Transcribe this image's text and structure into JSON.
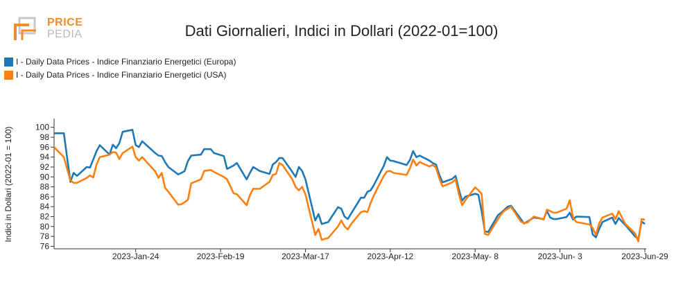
{
  "logo": {
    "top": "PRICE",
    "bottom": "PEDIA"
  },
  "colors": {
    "europa": "#1f77b4",
    "usa": "#ff7f0e",
    "logo_orange": "#f28c28",
    "logo_grey": "#b9b9b9"
  },
  "chart_data": {
    "type": "line",
    "title": "Dati Giornalieri, Indici in Dollari (2022-01=100)",
    "ylabel": "Indici in Dollari (2022-01 = 100)",
    "xlabel": "",
    "ylim": [
      75.5,
      101.5
    ],
    "yticks": [
      76,
      78,
      80,
      82,
      84,
      86,
      88,
      90,
      92,
      94,
      96,
      98,
      100
    ],
    "xlim": [
      "2022-12-30",
      "2023-06-29"
    ],
    "xticks": [
      {
        "date": "2023-01-24",
        "label": "2023-Jan-24"
      },
      {
        "date": "2023-02-19",
        "label": "2023-Feb-19"
      },
      {
        "date": "2023-03-17",
        "label": "2023-Mar-17"
      },
      {
        "date": "2023-04-12",
        "label": "2023-Apr-12"
      },
      {
        "date": "2023-05-08",
        "label": "2023-May- 8"
      },
      {
        "date": "2023-06-03",
        "label": "2023-Jun- 3"
      },
      {
        "date": "2023-06-29",
        "label": "2023-Jun-29"
      }
    ],
    "legend_position": "top-left",
    "grid": false,
    "series": [
      {
        "name": "I - Daily Data Prices - Indice Finanziario Energetici (Europa)",
        "color": "#1f77b4",
        "points": [
          [
            "2022-12-30",
            98.8
          ],
          [
            "2023-01-02",
            98.8
          ],
          [
            "2023-01-04",
            89.0
          ],
          [
            "2023-01-05",
            90.8
          ],
          [
            "2023-01-06",
            90.2
          ],
          [
            "2023-01-09",
            92.0
          ],
          [
            "2023-01-10",
            91.9
          ],
          [
            "2023-01-11",
            93.5
          ],
          [
            "2023-01-12",
            95.2
          ],
          [
            "2023-01-13",
            96.4
          ],
          [
            "2023-01-16",
            94.5
          ],
          [
            "2023-01-17",
            96.5
          ],
          [
            "2023-01-18",
            95.8
          ],
          [
            "2023-01-19",
            96.8
          ],
          [
            "2023-01-20",
            99.1
          ],
          [
            "2023-01-23",
            99.5
          ],
          [
            "2023-01-24",
            96.4
          ],
          [
            "2023-01-25",
            96.0
          ],
          [
            "2023-01-26",
            97.2
          ],
          [
            "2023-01-30",
            94.8
          ],
          [
            "2023-01-31",
            94.3
          ],
          [
            "2023-02-01",
            94.2
          ],
          [
            "2023-02-02",
            93.0
          ],
          [
            "2023-02-03",
            92.0
          ],
          [
            "2023-02-06",
            90.5
          ],
          [
            "2023-02-07",
            90.8
          ],
          [
            "2023-02-08",
            91.2
          ],
          [
            "2023-02-09",
            93.2
          ],
          [
            "2023-02-10",
            94.3
          ],
          [
            "2023-02-13",
            94.5
          ],
          [
            "2023-02-14",
            95.6
          ],
          [
            "2023-02-16",
            95.6
          ],
          [
            "2023-02-17",
            94.8
          ],
          [
            "2023-02-20",
            94.2
          ],
          [
            "2023-02-21",
            91.6
          ],
          [
            "2023-02-23",
            92.3
          ],
          [
            "2023-02-24",
            92.8
          ],
          [
            "2023-02-27",
            89.5
          ],
          [
            "2023-02-28",
            90.8
          ],
          [
            "2023-03-01",
            92.0
          ],
          [
            "2023-03-02",
            91.6
          ],
          [
            "2023-03-03",
            91.2
          ],
          [
            "2023-03-06",
            90.6
          ],
          [
            "2023-03-07",
            92.5
          ],
          [
            "2023-03-08",
            93.0
          ],
          [
            "2023-03-09",
            93.8
          ],
          [
            "2023-03-10",
            93.8
          ],
          [
            "2023-03-13",
            91.0
          ],
          [
            "2023-03-14",
            90.0
          ],
          [
            "2023-03-15",
            92.0
          ],
          [
            "2023-03-16",
            91.2
          ],
          [
            "2023-03-17",
            89.5
          ],
          [
            "2023-03-20",
            81.2
          ],
          [
            "2023-03-21",
            82.5
          ],
          [
            "2023-03-22",
            80.5
          ],
          [
            "2023-03-24",
            80.9
          ],
          [
            "2023-03-27",
            83.9
          ],
          [
            "2023-03-28",
            83.6
          ],
          [
            "2023-03-29",
            82.0
          ],
          [
            "2023-03-30",
            81.5
          ],
          [
            "2023-03-31",
            82.6
          ],
          [
            "2023-04-03",
            85.8
          ],
          [
            "2023-04-04",
            85.8
          ],
          [
            "2023-04-05",
            87.0
          ],
          [
            "2023-04-06",
            87.3
          ],
          [
            "2023-04-07",
            88.4
          ],
          [
            "2023-04-10",
            92.2
          ],
          [
            "2023-04-11",
            94.0
          ],
          [
            "2023-04-12",
            93.3
          ],
          [
            "2023-04-13",
            93.2
          ],
          [
            "2023-04-17",
            92.4
          ],
          [
            "2023-04-18",
            93.4
          ],
          [
            "2023-04-19",
            95.2
          ],
          [
            "2023-04-20",
            94.0
          ],
          [
            "2023-04-21",
            94.3
          ],
          [
            "2023-04-24",
            93.3
          ],
          [
            "2023-04-25",
            92.8
          ],
          [
            "2023-04-26",
            92.5
          ],
          [
            "2023-04-27",
            90.5
          ],
          [
            "2023-04-28",
            88.9
          ],
          [
            "2023-05-01",
            89.6
          ],
          [
            "2023-05-02",
            90.2
          ],
          [
            "2023-05-03",
            87.5
          ],
          [
            "2023-05-04",
            85.2
          ],
          [
            "2023-05-05",
            86.0
          ],
          [
            "2023-05-08",
            86.6
          ],
          [
            "2023-05-09",
            86.4
          ],
          [
            "2023-05-10",
            83.1
          ],
          [
            "2023-05-11",
            79.0
          ],
          [
            "2023-05-12",
            78.9
          ],
          [
            "2023-05-15",
            82.3
          ],
          [
            "2023-05-16",
            82.8
          ],
          [
            "2023-05-17",
            83.4
          ],
          [
            "2023-05-18",
            84.0
          ],
          [
            "2023-05-19",
            84.2
          ],
          [
            "2023-05-22",
            81.5
          ],
          [
            "2023-05-23",
            80.6
          ],
          [
            "2023-05-24",
            81.0
          ],
          [
            "2023-05-26",
            81.8
          ],
          [
            "2023-05-29",
            81.5
          ],
          [
            "2023-05-30",
            83.1
          ],
          [
            "2023-05-31",
            81.8
          ],
          [
            "2023-06-01",
            81.5
          ],
          [
            "2023-06-02",
            81.5
          ],
          [
            "2023-06-05",
            81.9
          ],
          [
            "2023-06-06",
            82.8
          ],
          [
            "2023-06-07",
            81.4
          ],
          [
            "2023-06-08",
            82.0
          ],
          [
            "2023-06-12",
            81.9
          ],
          [
            "2023-06-13",
            78.4
          ],
          [
            "2023-06-14",
            77.8
          ],
          [
            "2023-06-15",
            79.5
          ],
          [
            "2023-06-16",
            80.9
          ],
          [
            "2023-06-19",
            81.8
          ],
          [
            "2023-06-20",
            80.5
          ],
          [
            "2023-06-21",
            81.7
          ],
          [
            "2023-06-22",
            81.0
          ],
          [
            "2023-06-23",
            80.3
          ],
          [
            "2023-06-26",
            78.0
          ],
          [
            "2023-06-27",
            77.5
          ],
          [
            "2023-06-28",
            81.0
          ],
          [
            "2023-06-29",
            80.5
          ]
        ]
      },
      {
        "name": "I - Daily Data Prices - Indice Finanziario Energetici (USA)",
        "color": "#ff7f0e",
        "points": [
          [
            "2022-12-30",
            96.0
          ],
          [
            "2023-01-02",
            94.0
          ],
          [
            "2023-01-04",
            89.3
          ],
          [
            "2023-01-05",
            88.8
          ],
          [
            "2023-01-06",
            88.8
          ],
          [
            "2023-01-09",
            89.8
          ],
          [
            "2023-01-10",
            90.3
          ],
          [
            "2023-01-11",
            89.9
          ],
          [
            "2023-01-12",
            92.5
          ],
          [
            "2023-01-13",
            94.0
          ],
          [
            "2023-01-16",
            94.5
          ],
          [
            "2023-01-17",
            95.0
          ],
          [
            "2023-01-18",
            94.9
          ],
          [
            "2023-01-19",
            93.6
          ],
          [
            "2023-01-20",
            94.8
          ],
          [
            "2023-01-23",
            96.1
          ],
          [
            "2023-01-24",
            94.0
          ],
          [
            "2023-01-25",
            93.3
          ],
          [
            "2023-01-26",
            94.0
          ],
          [
            "2023-01-30",
            91.1
          ],
          [
            "2023-01-31",
            89.8
          ],
          [
            "2023-02-01",
            90.8
          ],
          [
            "2023-02-02",
            87.8
          ],
          [
            "2023-02-03",
            87.0
          ],
          [
            "2023-02-06",
            84.4
          ],
          [
            "2023-02-07",
            84.5
          ],
          [
            "2023-02-08",
            84.9
          ],
          [
            "2023-02-09",
            85.4
          ],
          [
            "2023-02-10",
            88.7
          ],
          [
            "2023-02-13",
            89.5
          ],
          [
            "2023-02-14",
            91.2
          ],
          [
            "2023-02-16",
            91.4
          ],
          [
            "2023-02-17",
            91.0
          ],
          [
            "2023-02-20",
            90.0
          ],
          [
            "2023-02-21",
            89.5
          ],
          [
            "2023-02-23",
            86.7
          ],
          [
            "2023-02-24",
            86.5
          ],
          [
            "2023-02-27",
            84.3
          ],
          [
            "2023-02-28",
            86.3
          ],
          [
            "2023-03-01",
            87.6
          ],
          [
            "2023-03-02",
            87.6
          ],
          [
            "2023-03-03",
            87.6
          ],
          [
            "2023-03-06",
            89.0
          ],
          [
            "2023-03-07",
            90.4
          ],
          [
            "2023-03-08",
            90.6
          ],
          [
            "2023-03-09",
            92.8
          ],
          [
            "2023-03-10",
            92.4
          ],
          [
            "2023-03-13",
            89.5
          ],
          [
            "2023-03-14",
            88.0
          ],
          [
            "2023-03-15",
            87.3
          ],
          [
            "2023-03-16",
            88.0
          ],
          [
            "2023-03-17",
            86.5
          ],
          [
            "2023-03-20",
            78.3
          ],
          [
            "2023-03-21",
            79.5
          ],
          [
            "2023-03-22",
            77.3
          ],
          [
            "2023-03-24",
            77.7
          ],
          [
            "2023-03-27",
            80.0
          ],
          [
            "2023-03-28",
            81.2
          ],
          [
            "2023-03-29",
            80.0
          ],
          [
            "2023-03-30",
            79.4
          ],
          [
            "2023-03-31",
            80.5
          ],
          [
            "2023-04-03",
            82.9
          ],
          [
            "2023-04-04",
            83.1
          ],
          [
            "2023-04-05",
            82.9
          ],
          [
            "2023-04-06",
            84.8
          ],
          [
            "2023-04-07",
            86.3
          ],
          [
            "2023-04-10",
            90.2
          ],
          [
            "2023-04-11",
            91.1
          ],
          [
            "2023-04-12",
            91.2
          ],
          [
            "2023-04-13",
            90.8
          ],
          [
            "2023-04-17",
            90.4
          ],
          [
            "2023-04-18",
            91.7
          ],
          [
            "2023-04-19",
            93.5
          ],
          [
            "2023-04-20",
            92.3
          ],
          [
            "2023-04-21",
            93.0
          ],
          [
            "2023-04-24",
            92.1
          ],
          [
            "2023-04-25",
            92.4
          ],
          [
            "2023-04-26",
            91.9
          ],
          [
            "2023-04-27",
            89.8
          ],
          [
            "2023-04-28",
            88.1
          ],
          [
            "2023-05-01",
            88.9
          ],
          [
            "2023-05-02",
            89.5
          ],
          [
            "2023-05-03",
            86.6
          ],
          [
            "2023-05-04",
            84.3
          ],
          [
            "2023-05-05",
            85.3
          ],
          [
            "2023-05-08",
            87.9
          ],
          [
            "2023-05-09",
            87.3
          ],
          [
            "2023-05-10",
            86.6
          ],
          [
            "2023-05-11",
            78.5
          ],
          [
            "2023-05-12",
            78.3
          ],
          [
            "2023-05-15",
            81.5
          ],
          [
            "2023-05-16",
            82.5
          ],
          [
            "2023-05-17",
            83.2
          ],
          [
            "2023-05-18",
            83.6
          ],
          [
            "2023-05-19",
            84.0
          ],
          [
            "2023-05-22",
            81.0
          ],
          [
            "2023-05-23",
            80.7
          ],
          [
            "2023-05-24",
            80.8
          ],
          [
            "2023-05-26",
            82.0
          ],
          [
            "2023-05-29",
            81.4
          ],
          [
            "2023-05-30",
            83.4
          ],
          [
            "2023-05-31",
            83.1
          ],
          [
            "2023-06-01",
            82.8
          ],
          [
            "2023-06-02",
            82.8
          ],
          [
            "2023-06-05",
            83.6
          ],
          [
            "2023-06-06",
            85.3
          ],
          [
            "2023-06-07",
            81.8
          ],
          [
            "2023-06-08",
            80.9
          ],
          [
            "2023-06-12",
            80.4
          ],
          [
            "2023-06-13",
            79.7
          ],
          [
            "2023-06-14",
            78.3
          ],
          [
            "2023-06-15",
            80.6
          ],
          [
            "2023-06-16",
            81.8
          ],
          [
            "2023-06-19",
            82.6
          ],
          [
            "2023-06-20",
            81.5
          ],
          [
            "2023-06-21",
            83.1
          ],
          [
            "2023-06-22",
            81.8
          ],
          [
            "2023-06-23",
            80.5
          ],
          [
            "2023-06-26",
            78.6
          ],
          [
            "2023-06-27",
            77.0
          ],
          [
            "2023-06-28",
            81.5
          ],
          [
            "2023-06-29",
            81.4
          ]
        ]
      }
    ]
  }
}
